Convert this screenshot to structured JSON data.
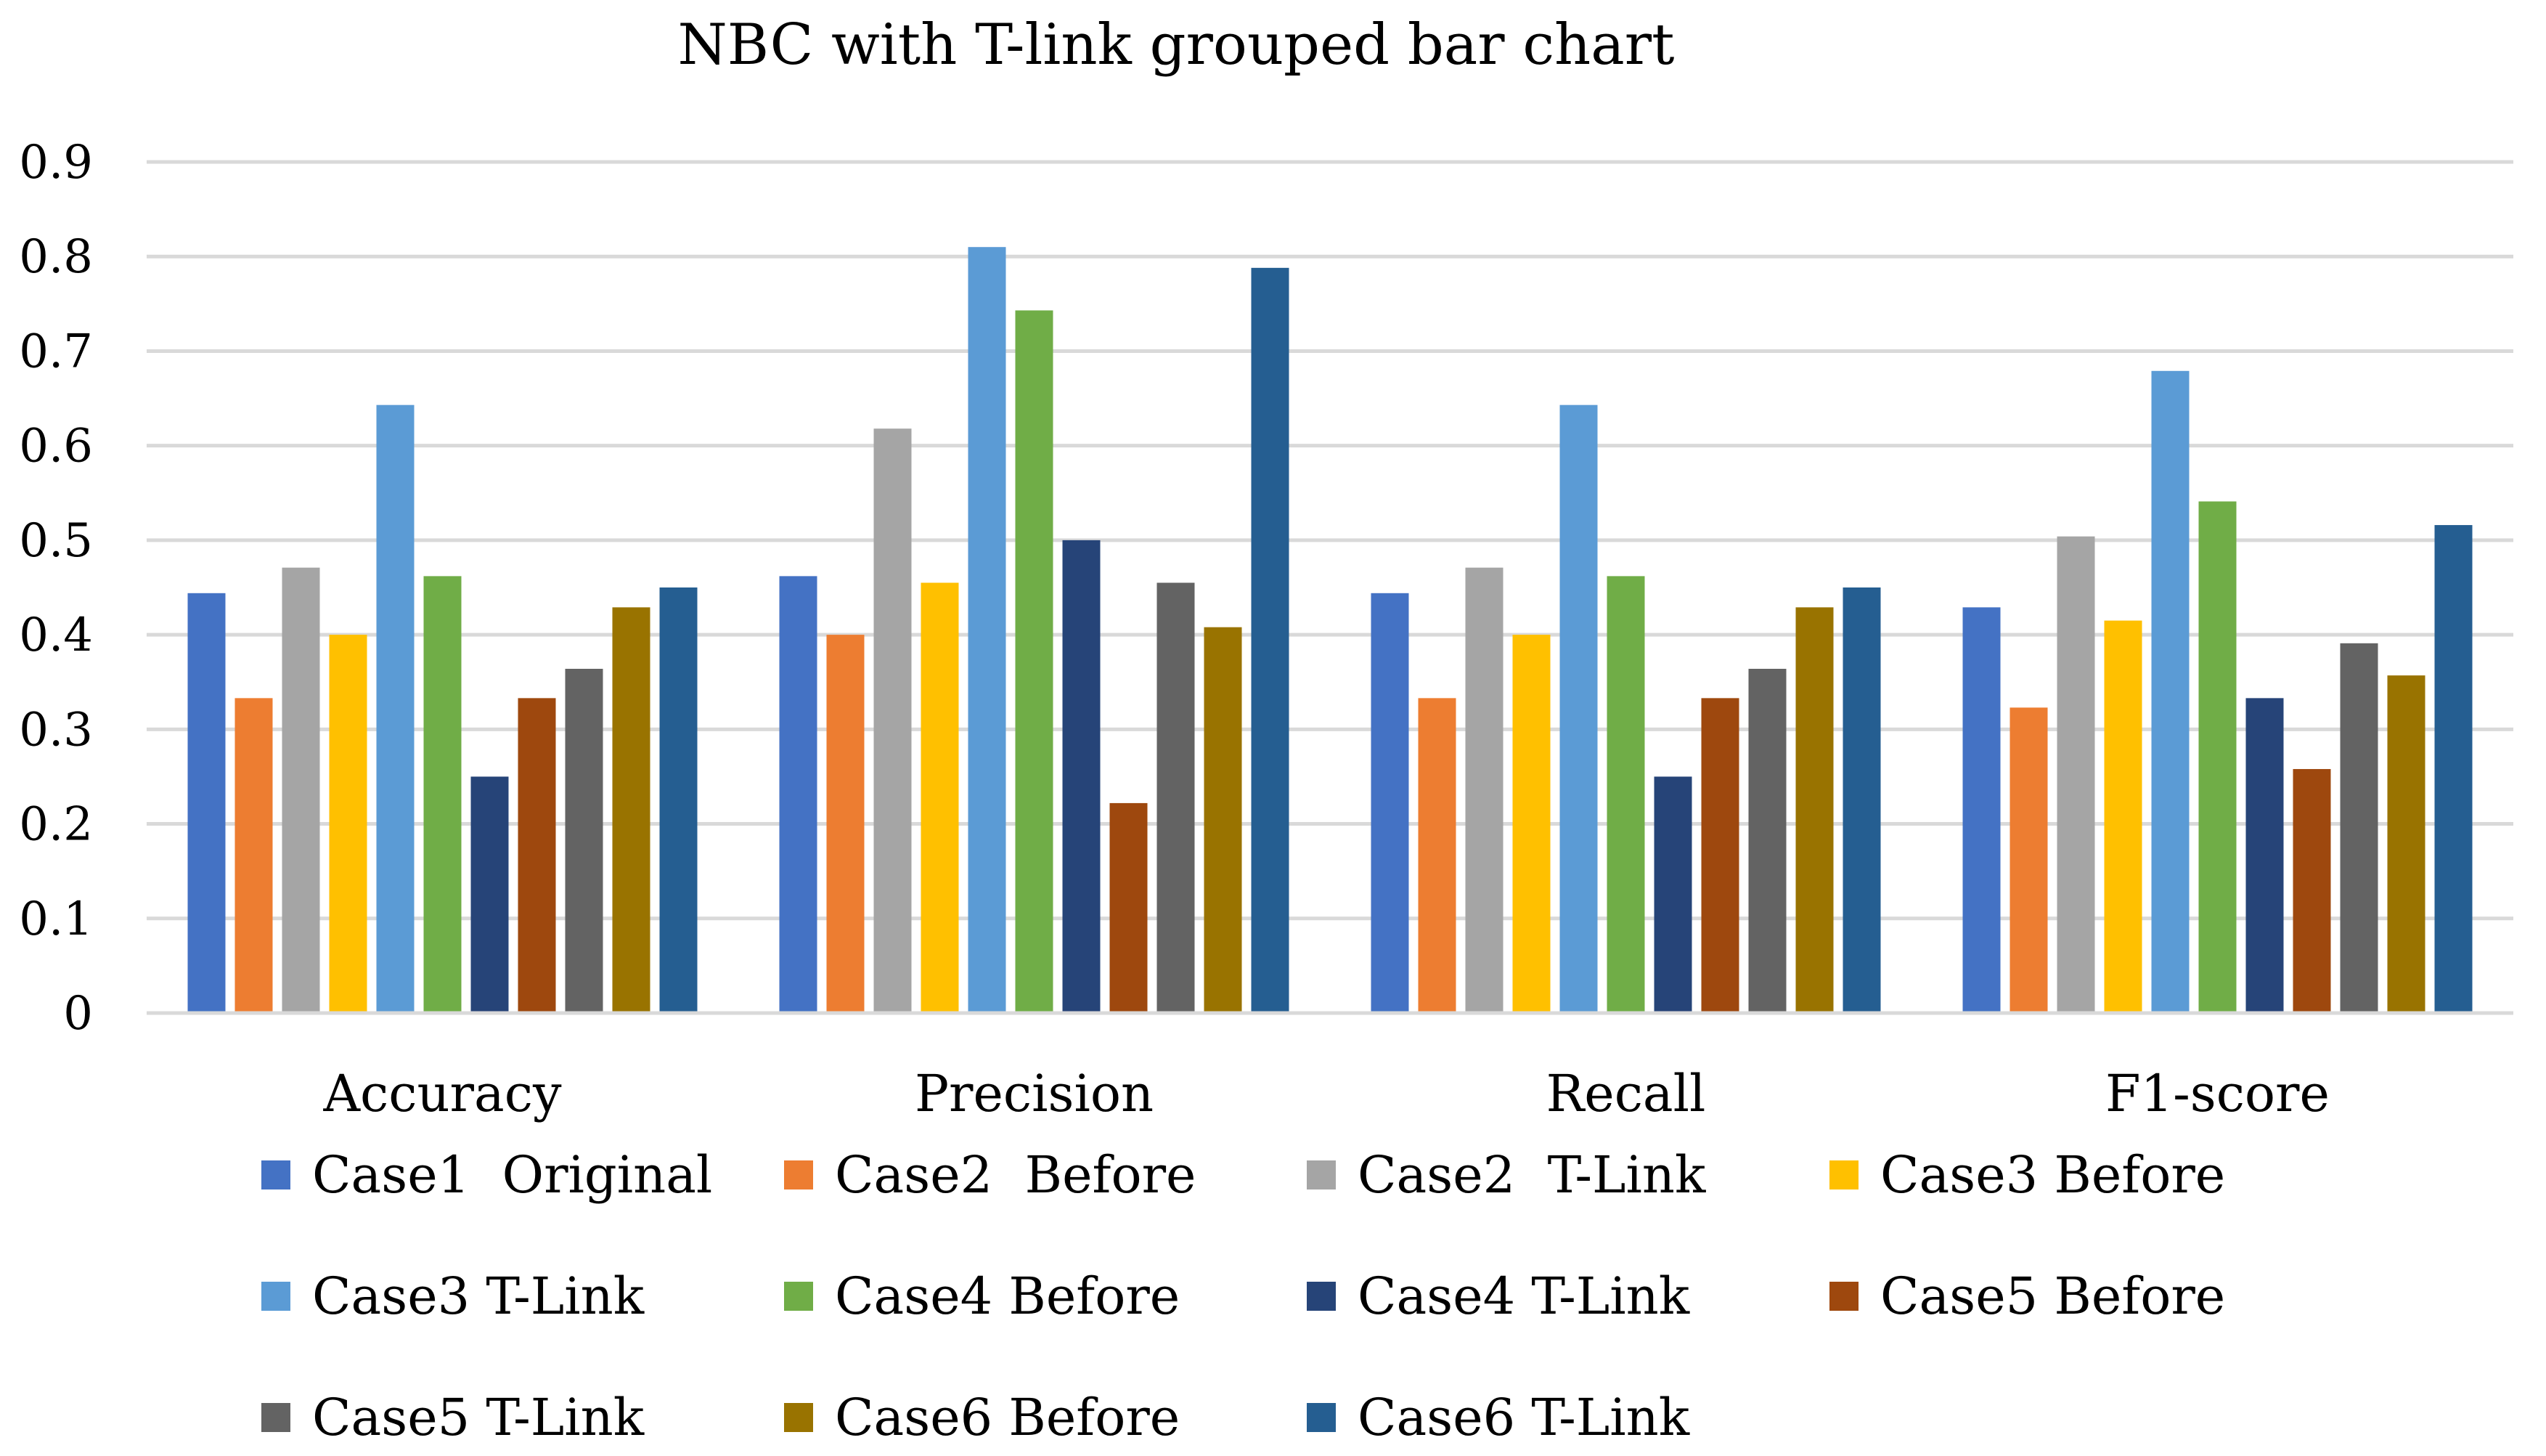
{
  "chart_data": {
    "type": "bar",
    "title": "NBC with T-link grouped bar chart",
    "xlabel": "",
    "ylabel": "",
    "ylim": [
      0,
      0.9
    ],
    "yticks": [
      "0",
      "0.1",
      "0.2",
      "0.3",
      "0.4",
      "0.5",
      "0.6",
      "0.7",
      "0.8",
      "0.9"
    ],
    "grid": true,
    "legend_position": "bottom",
    "categories": [
      "Accuracy",
      "Precision",
      "Recall",
      "F1-score"
    ],
    "series": [
      {
        "name": "Case1  Original",
        "color": "#4472C4",
        "values": [
          0.444,
          0.462,
          0.444,
          0.429
        ]
      },
      {
        "name": "Case2  Before",
        "color": "#ED7D31",
        "values": [
          0.333,
          0.4,
          0.333,
          0.323
        ]
      },
      {
        "name": "Case2  T-Link",
        "color": "#A5A5A5",
        "values": [
          0.471,
          0.618,
          0.471,
          0.504
        ]
      },
      {
        "name": "Case3 Before",
        "color": "#FFC000",
        "values": [
          0.4,
          0.455,
          0.4,
          0.415
        ]
      },
      {
        "name": "Case3 T-Link",
        "color": "#5B9BD5",
        "values": [
          0.643,
          0.81,
          0.643,
          0.679
        ]
      },
      {
        "name": "Case4 Before",
        "color": "#70AD47",
        "values": [
          0.462,
          0.743,
          0.462,
          0.541
        ]
      },
      {
        "name": "Case4 T-Link",
        "color": "#264478",
        "values": [
          0.25,
          0.5,
          0.25,
          0.333
        ]
      },
      {
        "name": "Case5 Before",
        "color": "#9E480E",
        "values": [
          0.333,
          0.222,
          0.333,
          0.258
        ]
      },
      {
        "name": "Case5 T-Link",
        "color": "#636363",
        "values": [
          0.364,
          0.455,
          0.364,
          0.391
        ]
      },
      {
        "name": "Case6 Before",
        "color": "#997300",
        "values": [
          0.429,
          0.408,
          0.429,
          0.357
        ]
      },
      {
        "name": "Case6 T-Link",
        "color": "#255E91",
        "values": [
          0.45,
          0.788,
          0.45,
          0.516
        ]
      }
    ]
  }
}
